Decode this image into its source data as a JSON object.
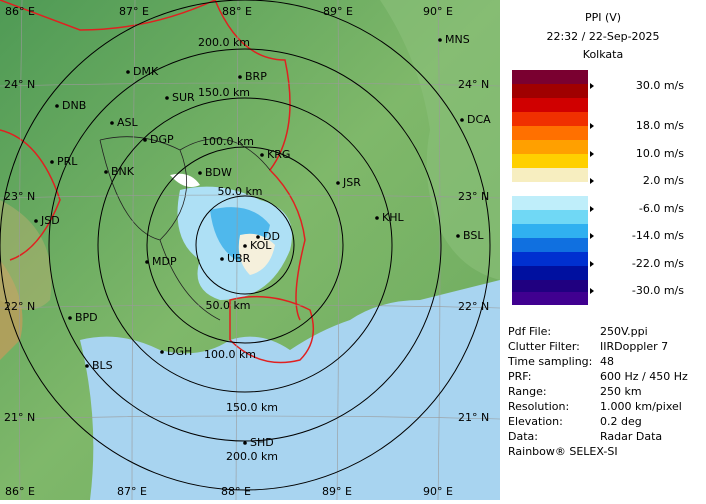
{
  "header": {
    "title": "PPI (V)",
    "time": "22:32 / 22-Sep-2025",
    "station": "Kolkata"
  },
  "grid_labels": {
    "top": [
      "86° E",
      "87° E",
      "88° E",
      "89° E",
      "90° E"
    ],
    "bottom": [
      "86° E",
      "87° E",
      "88° E",
      "89° E",
      "90° E"
    ],
    "left": [
      "24° N",
      "23° N",
      "22° N",
      "21° N"
    ],
    "right": [
      "24° N",
      "23° N",
      "22° N",
      "21° N"
    ]
  },
  "range_labels": {
    "upper": [
      "200.0 km",
      "150.0 km",
      "100.0 km",
      "50.0 km"
    ],
    "lower": [
      "50.0 km",
      "100.0 km",
      "150.0 km",
      "200.0 km"
    ]
  },
  "cities": [
    "MNS",
    "DMK",
    "BRP",
    "DNB",
    "SUR",
    "ASL",
    "DCA",
    "DGP",
    "PRL",
    "KRG",
    "BNK",
    "BDW",
    "JSR",
    "KHL",
    "JSD",
    "DD",
    "KOL",
    "BSL",
    "MDP",
    "UBR",
    "BPD",
    "DGH",
    "BLS",
    "SHD"
  ],
  "color_scale": [
    "30.0 m/s",
    "18.0 m/s",
    "10.0 m/s",
    "2.0 m/s",
    "-6.0 m/s",
    "-14.0 m/s",
    "-22.0 m/s",
    "-30.0 m/s"
  ],
  "info": [
    {
      "label": "Pdf File:",
      "value": "250V.ppi"
    },
    {
      "label": "Clutter Filter:",
      "value": "IIRDoppler 7"
    },
    {
      "label": "Time sampling:",
      "value": "48"
    },
    {
      "label": "PRF:",
      "value": "600 Hz / 450 Hz"
    },
    {
      "label": "Range:",
      "value": "250 km"
    },
    {
      "label": "Resolution:",
      "value": "1.000 km/pixel"
    },
    {
      "label": "Elevation:",
      "value": "0.2 deg"
    },
    {
      "label": "Data:",
      "value": "Radar Data"
    }
  ],
  "footer": "Rainbow® SELEX-SI"
}
